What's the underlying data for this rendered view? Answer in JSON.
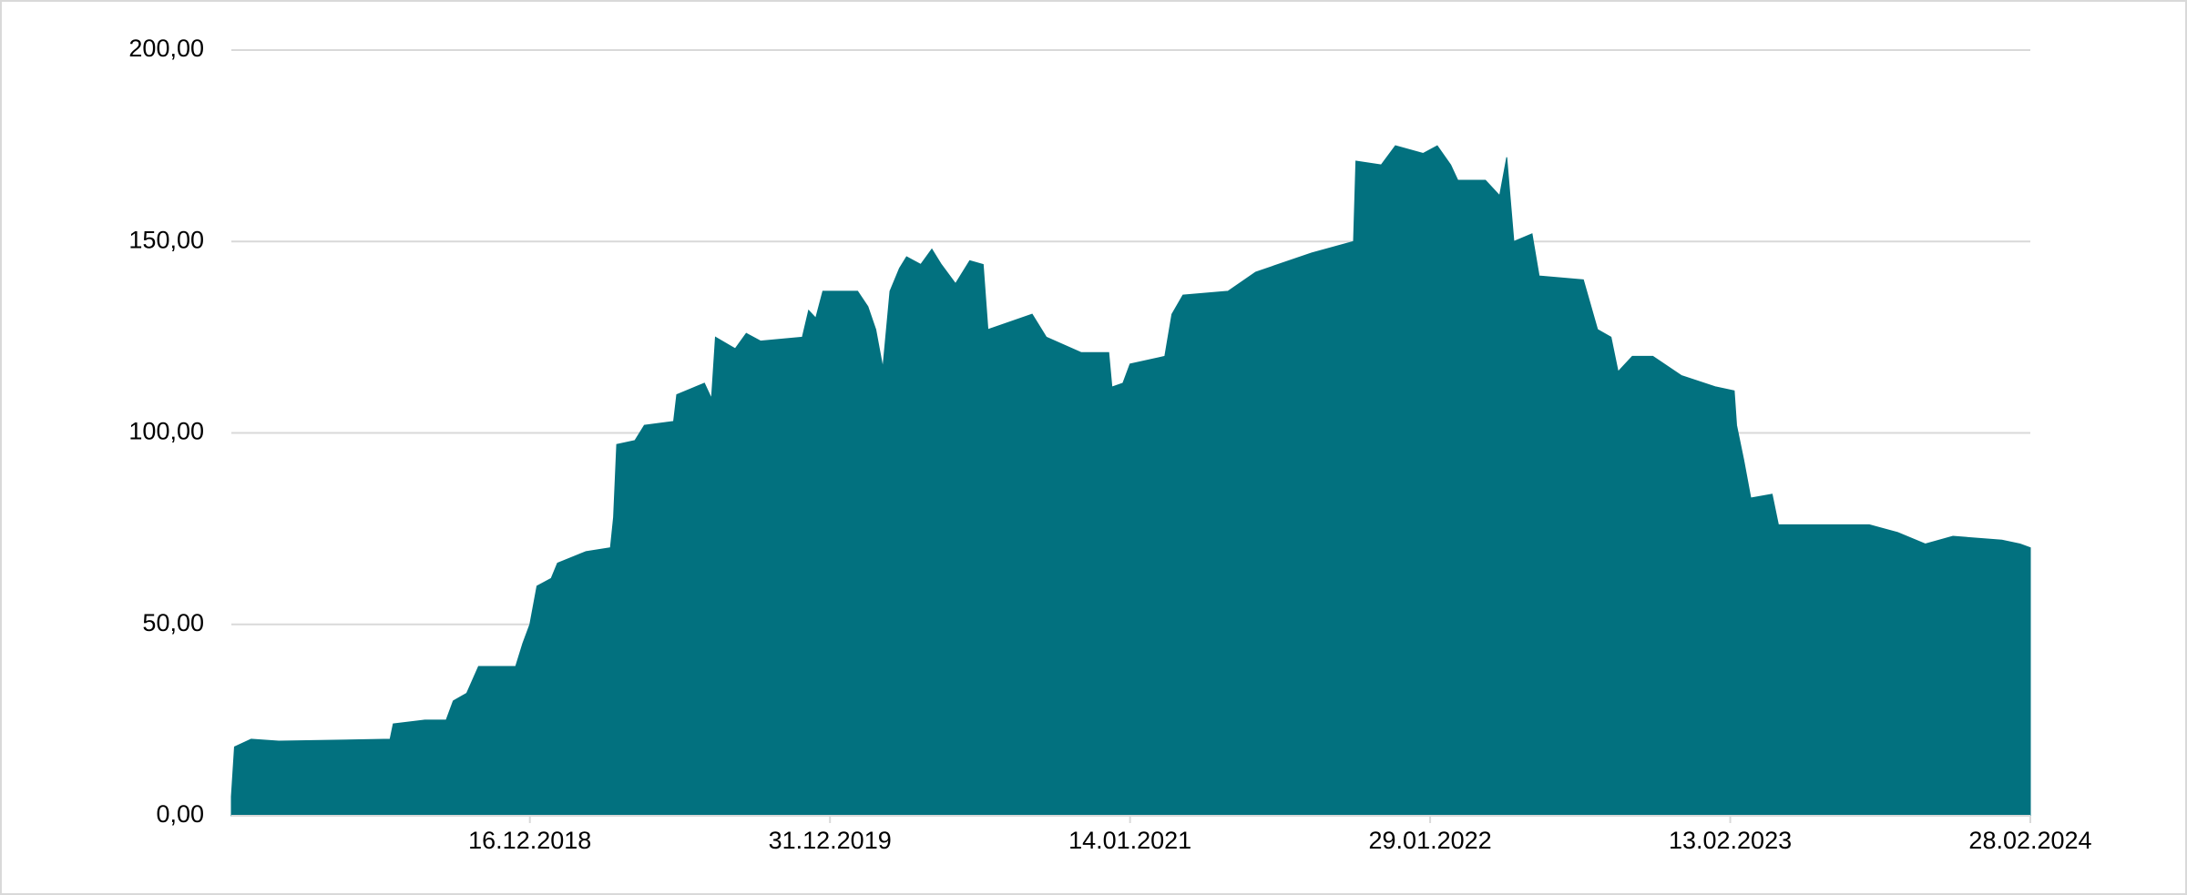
{
  "chart_data": {
    "type": "area",
    "color": "#02717f",
    "grid": true,
    "x": [
      "03.12.2017",
      "07.12.2017",
      "28.12.2017",
      "01.02.2018",
      "22.06.2018",
      "26.06.2018",
      "05.08.2018",
      "01.09.2018",
      "10.09.2018",
      "27.09.2018",
      "12.10.2018",
      "28.11.2018",
      "07.12.2018",
      "16.12.2018",
      "25.12.2018",
      "12.01.2019",
      "20.01.2019",
      "25.02.2019",
      "28.03.2019",
      "01.04.2019",
      "05.04.2019",
      "28.04.2019",
      "10.05.2019",
      "16.06.2019",
      "20.06.2019",
      "25.07.2019",
      "03.08.2019",
      "08.08.2019",
      "02.09.2019",
      "16.09.2019",
      "04.10.2019",
      "26.11.2019",
      "04.12.2019",
      "13.12.2019",
      "22.12.2019",
      "04.02.2020",
      "17.02.2020",
      "27.02.2020",
      "07.03.2020",
      "16.03.2020",
      "28.03.2020",
      "06.04.2020",
      "24.04.2020",
      "08.05.2020",
      "20.05.2020",
      "07.06.2020",
      "25.06.2020",
      "12.07.2020",
      "18.07.2020",
      "12.09.2020",
      "30.09.2020",
      "13.11.2020",
      "18.12.2020",
      "22.12.2020",
      "05.01.2021",
      "14.01.2021",
      "27.02.2021",
      "08.03.2021",
      "22.03.2021",
      "18.05.2021",
      "22.06.2021",
      "01.09.2021",
      "24.10.2021",
      "27.10.2021",
      "28.11.2021",
      "16.12.2021",
      "20.01.2022",
      "07.02.2022",
      "24.02.2022",
      "05.03.2022",
      "09.04.2022",
      "27.04.2022",
      "06.05.2022",
      "15.05.2022",
      "07.06.2022",
      "16.06.2022",
      "11.08.2022",
      "29.08.2022",
      "15.09.2022",
      "24.09.2022",
      "12.10.2022",
      "07.11.2022",
      "13.12.2022",
      "26.01.2023",
      "18.02.2023",
      "21.02.2023",
      "02.03.2023",
      "11.03.2023",
      "07.04.2023",
      "15.04.2023",
      "30.05.2023",
      "08.08.2023",
      "13.09.2023",
      "18.10.2023",
      "22.11.2023",
      "23.01.2024",
      "15.02.2024",
      "28.02.2024"
    ],
    "values": [
      5,
      18,
      20,
      19.5,
      20,
      24,
      25,
      25,
      30,
      32,
      39,
      39,
      45,
      50,
      60,
      62,
      66,
      69,
      70,
      78,
      97,
      98,
      102,
      103,
      110,
      113,
      109,
      125,
      122,
      126,
      124,
      125,
      132,
      130,
      137,
      137,
      133,
      127,
      117,
      137,
      143,
      146,
      144,
      148,
      144,
      139,
      145,
      144,
      127,
      131,
      125,
      121,
      121,
      112,
      113,
      118,
      120,
      131,
      136,
      137,
      142,
      147,
      150,
      171,
      170,
      175,
      173,
      175,
      170,
      166,
      166,
      162,
      172,
      150,
      152,
      141,
      140,
      127,
      125,
      116,
      120,
      120,
      115,
      112,
      111,
      102,
      93,
      83,
      84,
      76,
      76,
      76,
      74,
      71,
      73,
      72,
      71,
      70
    ],
    "xlim": [
      "03.12.2017",
      "28.02.2024"
    ],
    "xticks": [
      "16.12.2018",
      "31.12.2019",
      "14.01.2021",
      "29.01.2022",
      "13.02.2023",
      "28.02.2024"
    ],
    "ylim": [
      0,
      200
    ],
    "yticks": [
      {
        "value": 0,
        "label": "0,00"
      },
      {
        "value": 50,
        "label": "50,00"
      },
      {
        "value": 100,
        "label": "100,00"
      },
      {
        "value": 150,
        "label": "150,00"
      },
      {
        "value": 200,
        "label": "200,00"
      }
    ]
  }
}
